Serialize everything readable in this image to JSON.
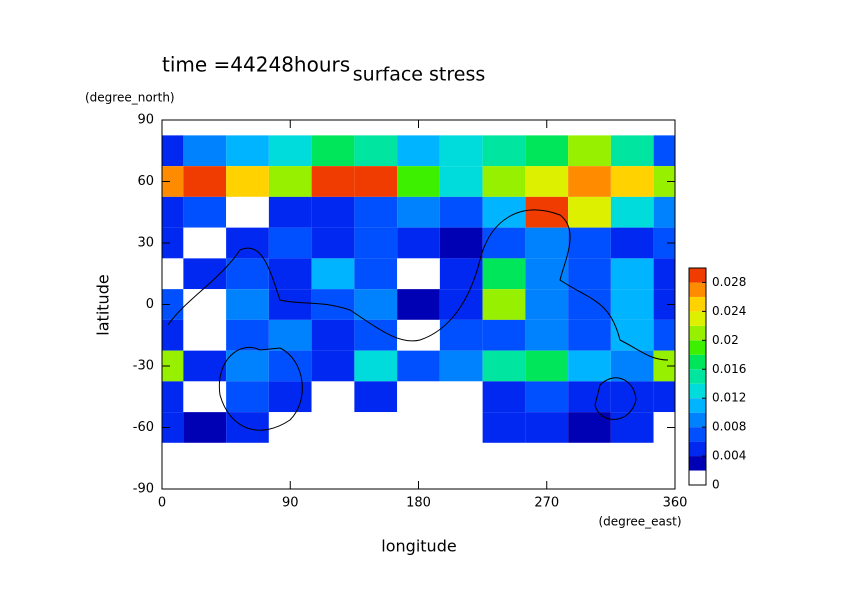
{
  "chart_data": {
    "type": "contour",
    "title": "surface stress",
    "subtitle": "time =44248hours",
    "x_label": "longitude",
    "x_unit": "(degree_east)",
    "y_label": "latitude",
    "y_unit": "(degree_north)",
    "x": [
      0,
      30,
      60,
      90,
      120,
      150,
      180,
      210,
      240,
      270,
      300,
      330,
      360
    ],
    "y": [
      90,
      75,
      60,
      45,
      30,
      15,
      0,
      -15,
      -30,
      -45,
      -60,
      -75,
      -90
    ],
    "values": [
      [
        0,
        0,
        0,
        0,
        0,
        0,
        0,
        0,
        0,
        0,
        0,
        0,
        0
      ],
      [
        0.004,
        0.008,
        0.01,
        0.012,
        0.016,
        0.014,
        0.01,
        0.012,
        0.014,
        0.016,
        0.02,
        0.014,
        0.006
      ],
      [
        0.026,
        0.03,
        0.024,
        0.02,
        0.028,
        0.03,
        0.018,
        0.012,
        0.02,
        0.022,
        0.026,
        0.024,
        0.02
      ],
      [
        0.004,
        0.006,
        0,
        0.004,
        0.004,
        0.006,
        0.008,
        0.006,
        0.01,
        0.028,
        0.022,
        0.012,
        0.008
      ],
      [
        0.004,
        0,
        0.004,
        0.006,
        0.004,
        0.006,
        0.004,
        0.002,
        0.006,
        0.008,
        0.006,
        0.004,
        0.006
      ],
      [
        0,
        0.004,
        0.006,
        0.004,
        0.01,
        0.006,
        0,
        0.004,
        0.016,
        0.008,
        0.006,
        0.01,
        0.004
      ],
      [
        0.006,
        0,
        0.008,
        0.004,
        0.006,
        0.008,
        0.002,
        0.004,
        0.02,
        0.008,
        0.006,
        0.01,
        0.004
      ],
      [
        0.004,
        0,
        0.006,
        0.008,
        0.004,
        0.006,
        0,
        0.006,
        0.006,
        0.008,
        0.006,
        0.01,
        0.006
      ],
      [
        0.02,
        0.004,
        0.008,
        0.006,
        0.004,
        0.012,
        0.006,
        0.008,
        0.014,
        0.016,
        0.01,
        0.008,
        0.02
      ],
      [
        0.004,
        0,
        0.006,
        0.004,
        0,
        0.004,
        0,
        0,
        0.004,
        0.006,
        0.004,
        0.004,
        0.004
      ],
      [
        0.004,
        0.002,
        0.004,
        0,
        0,
        0,
        0,
        0,
        0.004,
        0.004,
        0.002,
        0.004,
        0
      ],
      [
        0,
        0,
        0,
        0,
        0,
        0,
        0,
        0,
        0,
        0,
        0,
        0,
        0
      ],
      [
        0,
        0,
        0,
        0,
        0,
        0,
        0,
        0,
        0,
        0,
        0,
        0,
        0
      ]
    ],
    "xlim": [
      0,
      360
    ],
    "ylim": [
      -90,
      90
    ],
    "xticks": [
      0,
      90,
      180,
      270,
      360
    ],
    "yticks": [
      -90,
      -60,
      -30,
      0,
      30,
      60,
      90
    ],
    "clim": [
      0,
      0.03
    ],
    "cticks": [
      0,
      0.004,
      0.008,
      0.012,
      0.016,
      0.02,
      0.024,
      0.028
    ],
    "colors": [
      "#ffffff",
      "#0000b4",
      "#0028f0",
      "#0050ff",
      "#0082ff",
      "#00b4ff",
      "#00dcdc",
      "#00e6a0",
      "#00e65a",
      "#3cf000",
      "#96f000",
      "#dcf000",
      "#ffd200",
      "#ff8c00",
      "#f03c00"
    ]
  }
}
